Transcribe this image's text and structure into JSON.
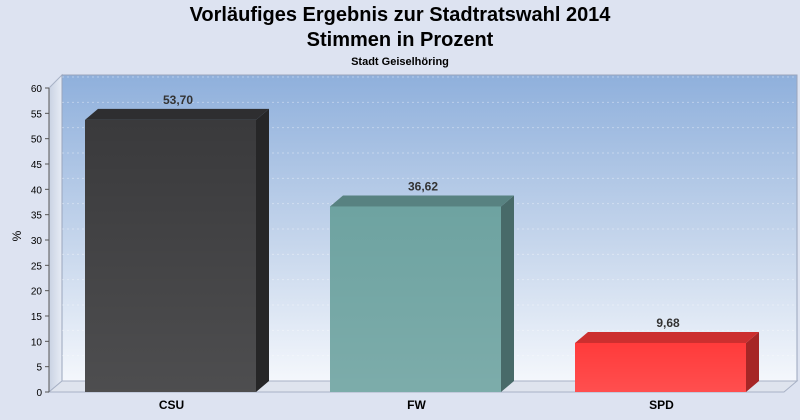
{
  "chart_data": {
    "type": "bar",
    "title": "Vorläufiges Ergebnis zur Stadtratswahl 2014",
    "subtitle": "Stimmen in Prozent",
    "caption": "Stadt Geiselhöring",
    "ylabel": "%",
    "xlabel": "",
    "ylim": [
      0,
      60
    ],
    "yticks": [
      "0",
      "5",
      "10",
      "15",
      "20",
      "25",
      "30",
      "35",
      "40",
      "45",
      "50",
      "55",
      "60"
    ],
    "categories": [
      "CSU",
      "FW",
      "SPD"
    ],
    "values": [
      53.7,
      36.62,
      9.68
    ],
    "value_labels": [
      "53,70",
      "36,62",
      "9,68"
    ],
    "colors": [
      "#3a3a3c",
      "#6ea3a1",
      "#ff3b3b"
    ],
    "grid": true,
    "legend": "none",
    "three_d": true
  }
}
